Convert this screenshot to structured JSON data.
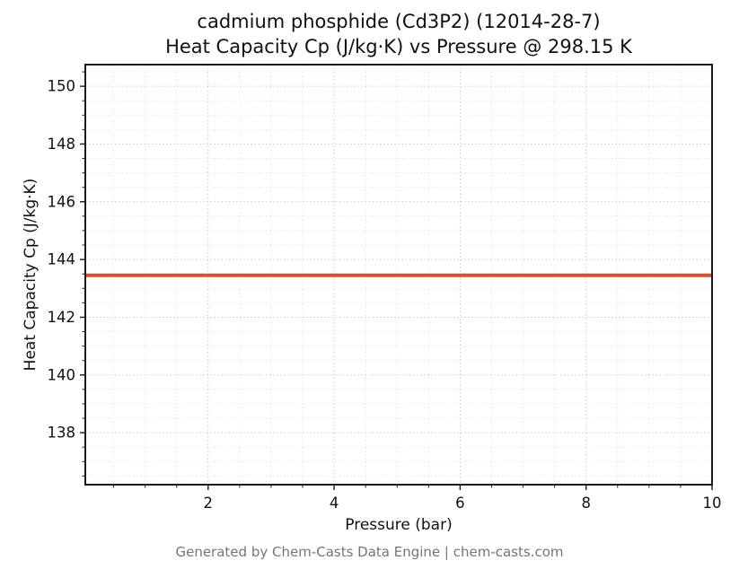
{
  "chart_data": {
    "type": "line",
    "title_line1": "cadmium phosphide (Cd3P2) (12014-28-7)",
    "title_line2": "Heat Capacity Cp (J/kg·K) vs Pressure @ 298.15 K",
    "xlabel": "Pressure (bar)",
    "ylabel": "Heat Capacity Cp (J/kg·K)",
    "footer": "Generated by Chem-Casts Data Engine | chem-casts.com",
    "series": [
      {
        "name": "heat-capacity-line",
        "color": "#d9502a",
        "linewidth": 4,
        "x": [
          0.05,
          10
        ],
        "y": [
          143.45,
          143.45
        ]
      }
    ],
    "constant_value": 143.45,
    "xlim": [
      0.05,
      10
    ],
    "ylim": [
      136.2,
      150.75
    ],
    "xticks": [
      2,
      4,
      6,
      8,
      10
    ],
    "yticks": [
      138,
      140,
      142,
      144,
      146,
      148,
      150
    ],
    "minor_x_step": 0.5,
    "minor_y_step": 0.5,
    "grid": true,
    "colors": {
      "axis": "#1a1a1a",
      "grid_major": "#c9c9c9",
      "grid_minor": "#e4e4e4",
      "tick_label": "#111111"
    },
    "legend": "none"
  }
}
